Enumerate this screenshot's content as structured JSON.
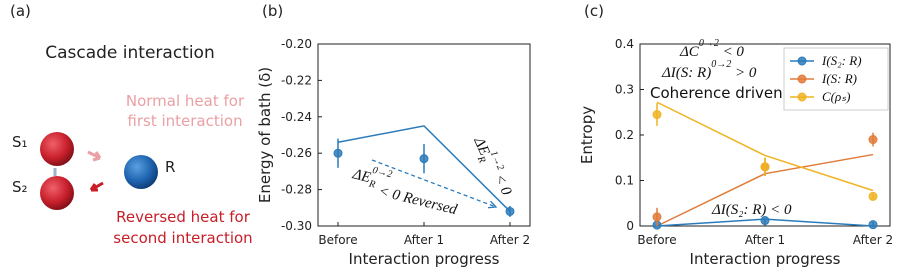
{
  "panel_a": {
    "label": "(a)",
    "title": "Cascade interaction",
    "normal_heat": [
      "Normal heat for",
      "first interaction"
    ],
    "reversed_heat": [
      "Reversed heat for",
      "second interaction"
    ],
    "s1": "S₁",
    "s2": "S₂",
    "r": "R"
  },
  "chart_data": [
    {
      "type": "line",
      "panel_label": "(b)",
      "ylabel": "Energy of bath (δ)",
      "xlabel": "Interaction progress",
      "categories": [
        "Before",
        "After 1",
        "After 2"
      ],
      "ylim": [
        -0.3,
        -0.2
      ],
      "yticks": [
        {
          "value": -0.2,
          "label": "-0.20"
        },
        -0.22,
        -0.24,
        -0.26,
        -0.28,
        {
          "value": -0.3,
          "label": "-0.30"
        }
      ],
      "series": [
        {
          "color": "#2b7bba",
          "values": [
            -0.26,
            -0.263,
            -0.292
          ],
          "errors": [
            0.008,
            0.008,
            0.003
          ],
          "markers": true
        },
        {
          "color": "#2b7bba",
          "values": [
            -0.254,
            -0.245,
            -0.292
          ],
          "markers": false
        }
      ],
      "annotations": [
        {
          "text": "ΔE",
          "sub": "R",
          "sup": "1→2",
          "tail": " < 0"
        },
        {
          "text": "ΔE",
          "sub": "R",
          "sup": "0→2"
        },
        {
          "text": "< 0 Reversed"
        }
      ]
    },
    {
      "type": "line",
      "panel_label": "(c)",
      "ylabel": "Entropy",
      "xlabel": "Interaction progress",
      "categories": [
        "Before",
        "After 1",
        "After 2"
      ],
      "ylim": [
        0,
        0.4
      ],
      "yticks": [
        0,
        0.1,
        0.2,
        0.3,
        0.4
      ],
      "legend": "upper right",
      "series": [
        {
          "name": "I(S₂: R)",
          "color": "#2b7bba",
          "values": [
            0.002,
            0.012,
            0.003
          ],
          "errors": [
            0.003,
            0.004,
            0.003
          ],
          "markers": true
        },
        {
          "name": "I(S: R)",
          "color": "#e07b39",
          "values": [
            0.02,
            0.13,
            0.19
          ],
          "errors": [
            0.02,
            0.02,
            0.015
          ],
          "markers": true
        },
        {
          "name": "C(ρₛ)",
          "color": "#f0b323",
          "values": [
            0.245,
            0.13,
            0.065
          ],
          "errors": [
            0.025,
            0.02,
            0.005
          ],
          "markers": true
        },
        {
          "color": "#2b7bba",
          "values": [
            0.0,
            0.015,
            0.0
          ],
          "markers": false
        },
        {
          "color": "#e07b39",
          "values": [
            0.0,
            0.115,
            0.157
          ],
          "markers": false
        },
        {
          "color": "#f0b323",
          "values": [
            0.272,
            0.155,
            0.078
          ],
          "markers": false
        }
      ],
      "annotations": [
        {
          "text": "ΔC",
          "sup": "0→2",
          "tail": " < 0"
        },
        {
          "text": "ΔI(S: R)",
          "sup": "0→2",
          "tail": " > 0"
        },
        {
          "text": "Coherence driven"
        },
        {
          "text": "ΔI(S₂: R) < 0"
        }
      ]
    }
  ]
}
